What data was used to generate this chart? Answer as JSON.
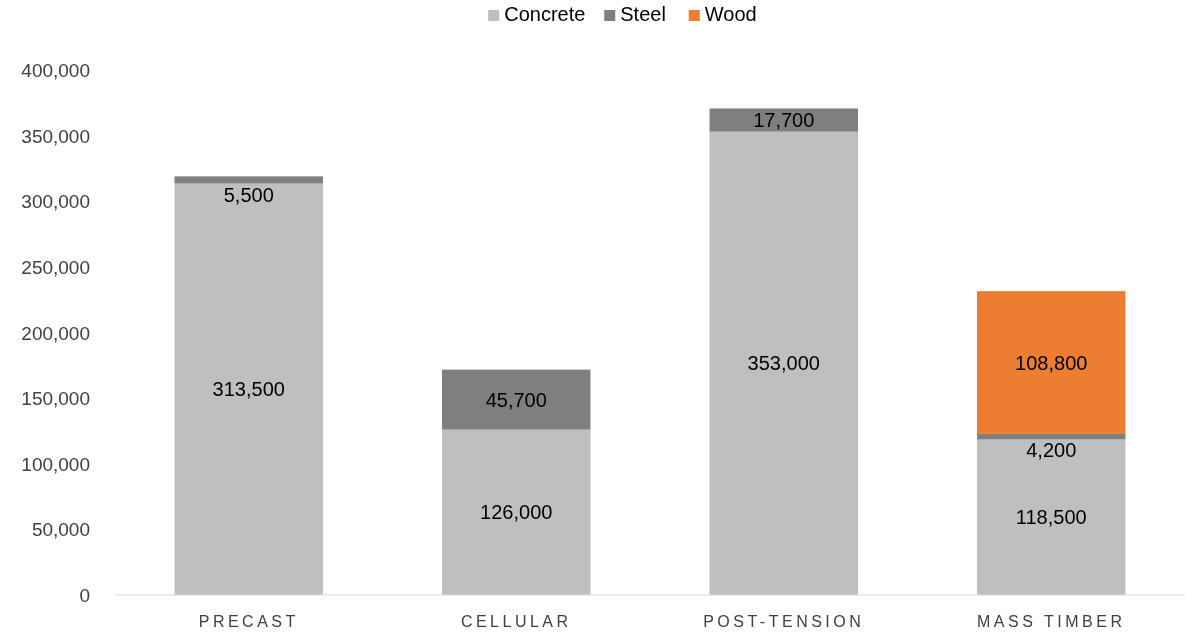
{
  "chart_data": {
    "type": "bar",
    "stacked": true,
    "categories": [
      "PRECAST",
      "CELLULAR",
      "POST-TENSION",
      "MASS TIMBER"
    ],
    "series": [
      {
        "name": "Concrete",
        "color": "#bfbfbf",
        "values": [
          313500,
          126000,
          353000,
          118500
        ],
        "value_labels": [
          "313,500",
          "126,000",
          "353,000",
          "118,500"
        ]
      },
      {
        "name": "Steel",
        "color": "#7f7f7f",
        "values": [
          5500,
          45700,
          17700,
          4200
        ],
        "value_labels": [
          "5,500",
          "45,700",
          "17,700",
          "4,200"
        ]
      },
      {
        "name": "Wood",
        "color": "#ed7d31",
        "values": [
          null,
          null,
          null,
          108800
        ],
        "value_labels": [
          null,
          null,
          null,
          "108,800"
        ]
      }
    ],
    "ylim": [
      0,
      400000
    ],
    "yticks": [
      {
        "value": 0,
        "label": "0"
      },
      {
        "value": 50000,
        "label": "50,000"
      },
      {
        "value": 100000,
        "label": "100,000"
      },
      {
        "value": 150000,
        "label": "150,000"
      },
      {
        "value": 200000,
        "label": "200,000"
      },
      {
        "value": 250000,
        "label": "250,000"
      },
      {
        "value": 300000,
        "label": "300,000"
      },
      {
        "value": 350000,
        "label": "350,000"
      },
      {
        "value": 400000,
        "label": "400,000"
      }
    ],
    "legend": "top",
    "grid": false
  }
}
